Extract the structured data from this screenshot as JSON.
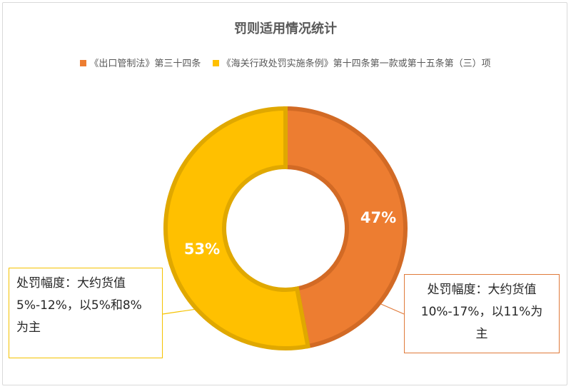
{
  "chart_data": {
    "type": "pie",
    "variant": "donut",
    "title": "罚则适用情况统计",
    "legend_position": "top",
    "series": [
      {
        "name": "《出口管制法》第三十四条",
        "value": 47,
        "label": "47%",
        "color": "#ed7d31"
      },
      {
        "name": "《海关行政处罚实施条例》第十四条第一款或第十五条第（三）项",
        "value": 53,
        "label": "53%",
        "color": "#ffc000"
      }
    ],
    "annotations": [
      {
        "series": 1,
        "lines": [
          "处罚幅度：大约货值",
          "5%-12%，以5%和8%",
          "为主"
        ]
      },
      {
        "series": 0,
        "lines": [
          "处罚幅度：大约货值",
          "10%-17%，以11%为",
          "主"
        ]
      }
    ]
  }
}
